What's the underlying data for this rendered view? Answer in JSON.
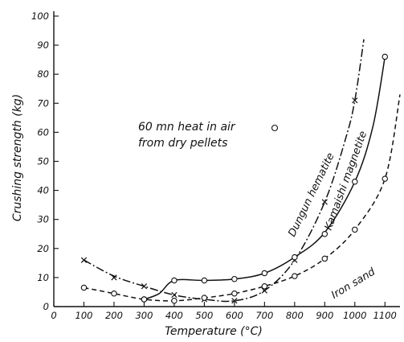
{
  "chart_data": {
    "type": "line",
    "title": "",
    "xlabel": "Temperature (°C)",
    "ylabel": "Crushing strength (kg)",
    "xlim": [
      0,
      1150
    ],
    "ylim": [
      0,
      100
    ],
    "x_ticks": [
      0,
      100,
      200,
      300,
      400,
      500,
      600,
      700,
      800,
      900,
      1000,
      1100
    ],
    "y_ticks": [
      0,
      10,
      20,
      30,
      40,
      50,
      60,
      70,
      80,
      90,
      100
    ],
    "grid": false,
    "annotation": {
      "lines": [
        "60 mn heat in air",
        "from dry pellets"
      ],
      "marker": "circle"
    },
    "series": [
      {
        "name": "Dungun hematite",
        "line_style": "dash-dot",
        "marker": "x",
        "points": [
          [
            100,
            16
          ],
          [
            200,
            10
          ],
          [
            300,
            7
          ],
          [
            400,
            4
          ],
          [
            500,
            2.5
          ],
          [
            600,
            2
          ],
          [
            700,
            5.5
          ],
          [
            800,
            16
          ],
          [
            900,
            36
          ],
          [
            1000,
            71
          ]
        ],
        "curve": [
          [
            100,
            16
          ],
          [
            200,
            10.5
          ],
          [
            300,
            7
          ],
          [
            400,
            4
          ],
          [
            500,
            2.5
          ],
          [
            600,
            2
          ],
          [
            700,
            5.5
          ],
          [
            800,
            16
          ],
          [
            900,
            36
          ],
          [
            970,
            58
          ],
          [
            1000,
            71
          ],
          [
            1030,
            92
          ]
        ]
      },
      {
        "name": "Kamaishi magnetite",
        "line_style": "solid",
        "marker": "circle",
        "points": [
          [
            300,
            2.5
          ],
          [
            400,
            9
          ],
          [
            500,
            9
          ],
          [
            600,
            9.5
          ],
          [
            700,
            11.5
          ],
          [
            800,
            17
          ],
          [
            900,
            25
          ],
          [
            1000,
            43
          ],
          [
            1100,
            86
          ]
        ],
        "curve": [
          [
            300,
            2.5
          ],
          [
            350,
            4.5
          ],
          [
            400,
            9
          ],
          [
            500,
            9
          ],
          [
            600,
            9.5
          ],
          [
            700,
            11.5
          ],
          [
            800,
            17
          ],
          [
            900,
            25.5
          ],
          [
            1000,
            43
          ],
          [
            1060,
            62
          ],
          [
            1100,
            86
          ]
        ]
      },
      {
        "name": "Iron sand",
        "line_style": "dashed",
        "marker": "circle",
        "points": [
          [
            100,
            6.5
          ],
          [
            200,
            4.5
          ],
          [
            300,
            2.5
          ],
          [
            400,
            2
          ],
          [
            500,
            3
          ],
          [
            600,
            4.5
          ],
          [
            700,
            7
          ],
          [
            800,
            10.5
          ],
          [
            900,
            16.5
          ],
          [
            1000,
            26.5
          ],
          [
            1100,
            44
          ]
        ],
        "curve": [
          [
            100,
            6.5
          ],
          [
            200,
            4.5
          ],
          [
            300,
            2.5
          ],
          [
            400,
            2
          ],
          [
            500,
            3
          ],
          [
            600,
            4.5
          ],
          [
            700,
            7
          ],
          [
            800,
            10.5
          ],
          [
            900,
            16.5
          ],
          [
            1000,
            26.5
          ],
          [
            1100,
            44
          ],
          [
            1150,
            73
          ]
        ]
      }
    ]
  }
}
